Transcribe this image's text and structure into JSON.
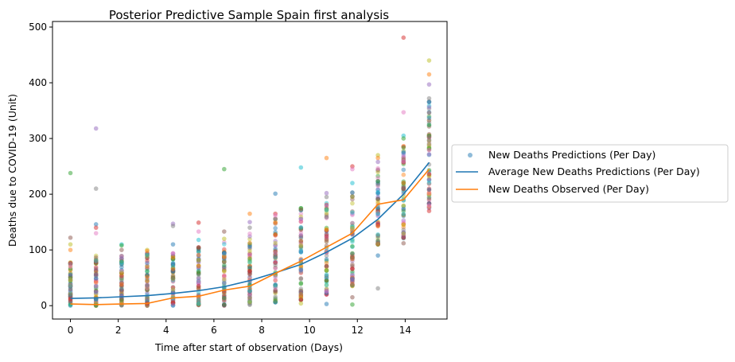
{
  "chart_data": {
    "type": "scatter",
    "title": "Posterior Predictive Sample Spain first analysis",
    "xlabel": "Time after start of observation (Days)",
    "ylabel": "Deaths due to COVID-19 (Unit)",
    "xlim": [
      -0.75,
      15.75
    ],
    "ylim": [
      -24,
      510
    ],
    "xticks": [
      0,
      2,
      4,
      6,
      8,
      10,
      12,
      14
    ],
    "yticks": [
      0,
      100,
      200,
      300,
      400,
      500
    ],
    "x": [
      0,
      1.07,
      2.14,
      3.21,
      4.29,
      5.36,
      6.43,
      7.5,
      8.57,
      9.64,
      10.71,
      11.79,
      12.86,
      13.93,
      15
    ],
    "grid": false,
    "legend_position": "right",
    "series": [
      {
        "name": "New Deaths Predictions (Per Day)",
        "kind": "scatter",
        "color": "#1f77b4",
        "marker_colors": [
          "#1f77b4",
          "#ff7f0e",
          "#2ca02c",
          "#d62728",
          "#9467bd",
          "#8c564b",
          "#e377c2",
          "#7f7f7f",
          "#bcbd22",
          "#17becf"
        ],
        "dense_ranges": [
          [
            0,
            85
          ],
          [
            0,
            90
          ],
          [
            0,
            90
          ],
          [
            0,
            95
          ],
          [
            0,
            100
          ],
          [
            0,
            110
          ],
          [
            0,
            115
          ],
          [
            0,
            130
          ],
          [
            5,
            160
          ],
          [
            10,
            175
          ],
          [
            20,
            190
          ],
          [
            35,
            210
          ],
          [
            110,
            250
          ],
          [
            120,
            295
          ],
          [
            175,
            370
          ]
        ],
        "outliers": [
          [
            0,
            238
          ],
          [
            0,
            122
          ],
          [
            0,
            110
          ],
          [
            0,
            100
          ],
          [
            1.07,
            318
          ],
          [
            1.07,
            210
          ],
          [
            1.07,
            146
          ],
          [
            1.07,
            140
          ],
          [
            1.07,
            130
          ],
          [
            2.14,
            110
          ],
          [
            2.14,
            108
          ],
          [
            2.14,
            100
          ],
          [
            3.21,
            100
          ],
          [
            3.21,
            98
          ],
          [
            4.29,
            147
          ],
          [
            4.29,
            143
          ],
          [
            4.29,
            110
          ],
          [
            5.36,
            149
          ],
          [
            5.36,
            133
          ],
          [
            5.36,
            118
          ],
          [
            6.43,
            245
          ],
          [
            6.43,
            133
          ],
          [
            6.43,
            120
          ],
          [
            7.5,
            165
          ],
          [
            7.5,
            150
          ],
          [
            7.5,
            140
          ],
          [
            8.57,
            201
          ],
          [
            8.57,
            165
          ],
          [
            8.57,
            162
          ],
          [
            9.64,
            248
          ],
          [
            9.64,
            175
          ],
          [
            9.64,
            172
          ],
          [
            9.64,
            4
          ],
          [
            10.71,
            265
          ],
          [
            10.71,
            202
          ],
          [
            10.71,
            195
          ],
          [
            10.71,
            3
          ],
          [
            11.79,
            250
          ],
          [
            11.79,
            245
          ],
          [
            11.79,
            220
          ],
          [
            11.79,
            2
          ],
          [
            11.79,
            15
          ],
          [
            12.86,
            270
          ],
          [
            12.86,
            265
          ],
          [
            12.86,
            258
          ],
          [
            12.86,
            31
          ],
          [
            12.86,
            90
          ],
          [
            13.93,
            481
          ],
          [
            13.93,
            347
          ],
          [
            13.93,
            305
          ],
          [
            13.93,
            300
          ],
          [
            13.93,
            112
          ],
          [
            15,
            440
          ],
          [
            15,
            415
          ],
          [
            15,
            397
          ],
          [
            15,
            372
          ],
          [
            15,
            365
          ],
          [
            15,
            170
          ],
          [
            15,
            180
          ]
        ]
      },
      {
        "name": "Average New Deaths Predictions (Per Day)",
        "kind": "line",
        "color": "#1f77b4",
        "values": [
          13,
          14,
          16,
          18,
          22,
          27,
          34,
          45,
          59,
          74,
          96,
          121,
          155,
          200,
          257
        ]
      },
      {
        "name": "New Deaths Observed (Per Day)",
        "kind": "line",
        "color": "#ff7f0e",
        "values": [
          3,
          2,
          3,
          4,
          14,
          17,
          28,
          35,
          58,
          80,
          105,
          130,
          182,
          190,
          245
        ]
      }
    ]
  }
}
